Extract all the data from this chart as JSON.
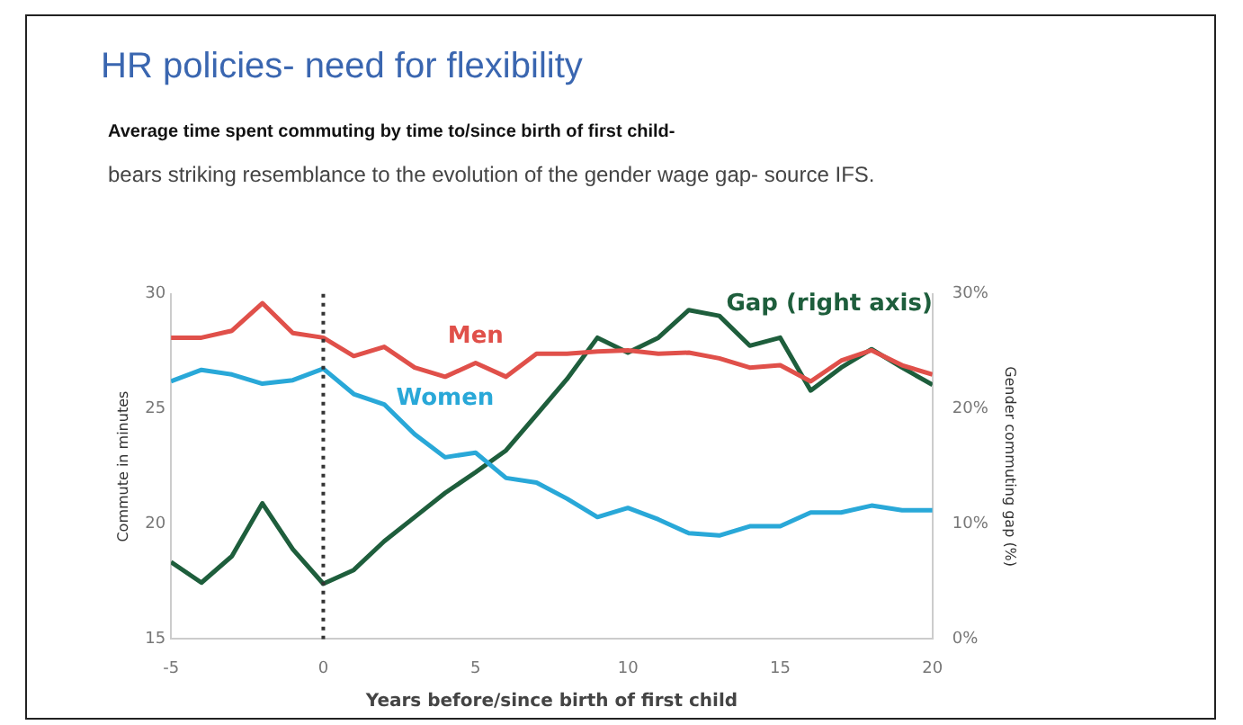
{
  "chart_data": {
    "type": "line",
    "title": "HR policies- need for flexibility",
    "subtitle": "Average time spent commuting by time to/since birth of first child-",
    "annotations": [
      "bears striking resemblance to the evolution of the gender wage gap- source IFS."
    ],
    "xlabel": "Years before/since birth of first child",
    "ylabel": "Commute in minutes",
    "y2label": "Gender commuting gap (%)",
    "x": [
      -5,
      -4,
      -3,
      -2,
      -1,
      0,
      1,
      2,
      3,
      4,
      5,
      6,
      7,
      8,
      9,
      10,
      11,
      12,
      13,
      14,
      15,
      16,
      17,
      18,
      19,
      20
    ],
    "series": [
      {
        "name": "Men",
        "color": "#e0504a",
        "values": [
          28.1,
          28.1,
          28.4,
          29.6,
          28.3,
          28.1,
          27.3,
          27.7,
          26.8,
          26.4,
          27.0,
          26.4,
          27.4,
          27.4,
          27.5,
          27.55,
          27.4,
          27.45,
          27.2,
          26.8,
          26.9,
          26.2,
          27.1,
          27.55,
          26.9,
          26.5
        ]
      },
      {
        "name": "Women",
        "color": "#29a8d8",
        "values": [
          26.2,
          26.7,
          26.5,
          26.1,
          26.25,
          26.75,
          25.65,
          25.2,
          23.9,
          22.9,
          23.1,
          22.0,
          21.8,
          21.1,
          20.3,
          20.7,
          20.2,
          19.6,
          19.5,
          19.9,
          19.9,
          20.5,
          20.5,
          20.8,
          20.6,
          20.6
        ]
      },
      {
        "name": "Gap (right axis)",
        "color": "#1e5e3c",
        "axis": "y2",
        "values": [
          6.7,
          4.9,
          7.2,
          11.8,
          7.8,
          4.8,
          6.0,
          8.5,
          10.6,
          12.7,
          14.5,
          16.4,
          19.5,
          22.6,
          26.2,
          24.9,
          26.2,
          28.6,
          28.1,
          25.5,
          26.2,
          21.6,
          23.6,
          25.2,
          23.6,
          22.1
        ]
      }
    ],
    "xlim": [
      -5,
      20
    ],
    "xticks": [
      -5,
      0,
      5,
      10,
      15,
      20
    ],
    "ylim": [
      15,
      30
    ],
    "yticks": [
      15,
      20,
      25,
      30
    ],
    "y2lim": [
      0,
      30
    ],
    "y2ticks": [
      {
        "value": 0,
        "label": "0%"
      },
      {
        "value": 10,
        "label": "10%"
      },
      {
        "value": 20,
        "label": "20%"
      },
      {
        "value": 30,
        "label": "30%"
      }
    ],
    "ref_lines": [
      {
        "axis": "x",
        "value": 0,
        "color": "#333333",
        "line_style": "dotted"
      }
    ],
    "grid": false,
    "legend": false,
    "marker": "none",
    "line_style": "solid"
  }
}
